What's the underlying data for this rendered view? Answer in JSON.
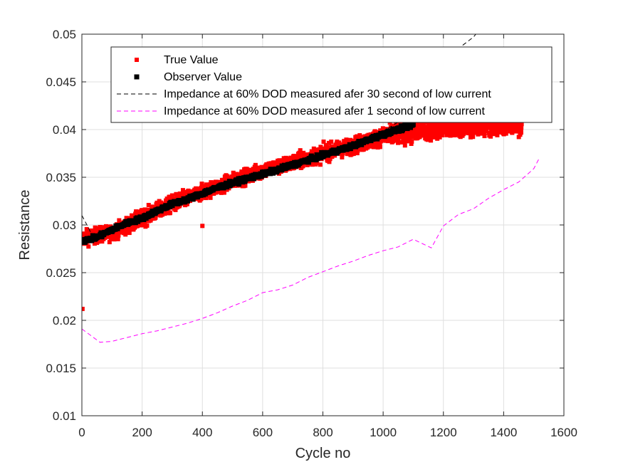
{
  "chart_data": {
    "type": "scatter",
    "xlabel": "Cycle no",
    "ylabel": "Resistance",
    "xlim": [
      0,
      1600
    ],
    "ylim": [
      0.01,
      0.05
    ],
    "xticks": [
      0,
      200,
      400,
      600,
      800,
      1000,
      1200,
      1400,
      1600
    ],
    "xtick_labels": [
      "0",
      "200",
      "400",
      "600",
      "800",
      "1000",
      "1200",
      "1400",
      "1600"
    ],
    "yticks": [
      0.01,
      0.015,
      0.02,
      0.025,
      0.03,
      0.035,
      0.04,
      0.045,
      0.05
    ],
    "ytick_labels": [
      "0.01",
      "0.015",
      "0.02",
      "0.025",
      "0.03",
      "0.035",
      "0.04",
      "0.045",
      "0.05"
    ],
    "grid": true,
    "legend_position": "top",
    "series": [
      {
        "name": "True Value",
        "kind": "scatter",
        "marker": "square",
        "color": "#ff0000",
        "trend": [
          [
            0,
            0.0286
          ],
          [
            100,
            0.0292
          ],
          [
            200,
            0.0307
          ],
          [
            300,
            0.0322
          ],
          [
            400,
            0.0334
          ],
          [
            500,
            0.0346
          ],
          [
            600,
            0.0357
          ],
          [
            700,
            0.0365
          ],
          [
            800,
            0.0375
          ],
          [
            900,
            0.0383
          ],
          [
            1000,
            0.0393
          ],
          [
            1100,
            0.0398
          ],
          [
            1200,
            0.0402
          ],
          [
            1300,
            0.0404
          ],
          [
            1400,
            0.0405
          ],
          [
            1460,
            0.0405
          ]
        ],
        "outliers": [
          [
            2,
            0.0212
          ],
          [
            400,
            0.0299
          ]
        ]
      },
      {
        "name": "Observer Value",
        "kind": "scatter",
        "marker": "square",
        "color": "#000000",
        "x": [
          0,
          50,
          100,
          150,
          200,
          250,
          300,
          350,
          400,
          450,
          500,
          550,
          600,
          650,
          700,
          750,
          800,
          850,
          900,
          950,
          1000,
          1050,
          1100
        ],
        "y": [
          0.0283,
          0.0287,
          0.0295,
          0.0302,
          0.0307,
          0.0315,
          0.0322,
          0.0327,
          0.0333,
          0.0339,
          0.0344,
          0.0349,
          0.0353,
          0.0358,
          0.0363,
          0.0368,
          0.0373,
          0.0378,
          0.0383,
          0.0389,
          0.0395,
          0.04,
          0.0405
        ]
      },
      {
        "name": "Impedance at 60% DOD measured afer 30 second of low current",
        "kind": "line",
        "dash": "dashed",
        "color": "#000000",
        "x": [
          0,
          20,
          40,
          100,
          200,
          300,
          400,
          500,
          600,
          700,
          800,
          900,
          1000,
          1100,
          1150,
          1200,
          1250,
          1300,
          1310
        ],
        "y": [
          0.031,
          0.0298,
          0.0285,
          0.0292,
          0.0307,
          0.0322,
          0.0334,
          0.0346,
          0.0357,
          0.0366,
          0.0376,
          0.0387,
          0.0398,
          0.0418,
          0.0433,
          0.0462,
          0.0485,
          0.0497,
          0.0501
        ]
      },
      {
        "name": "Impedance at 60% DOD measured afer 1 second of low current",
        "kind": "line",
        "dash": "dashed",
        "color": "#ff00ff",
        "x": [
          0,
          30,
          60,
          100,
          150,
          200,
          250,
          300,
          350,
          400,
          450,
          500,
          550,
          600,
          650,
          700,
          750,
          800,
          850,
          900,
          950,
          1000,
          1050,
          1100,
          1160,
          1200,
          1250,
          1300,
          1350,
          1400,
          1450,
          1500,
          1520
        ],
        "y": [
          0.0191,
          0.0184,
          0.0177,
          0.0178,
          0.0182,
          0.0186,
          0.0189,
          0.0193,
          0.0197,
          0.0202,
          0.0208,
          0.0215,
          0.0221,
          0.0229,
          0.0232,
          0.0237,
          0.0245,
          0.0251,
          0.0257,
          0.0262,
          0.0268,
          0.0273,
          0.0277,
          0.0285,
          0.0276,
          0.0299,
          0.0311,
          0.0317,
          0.0328,
          0.0337,
          0.0345,
          0.0359,
          0.0371
        ]
      }
    ]
  }
}
